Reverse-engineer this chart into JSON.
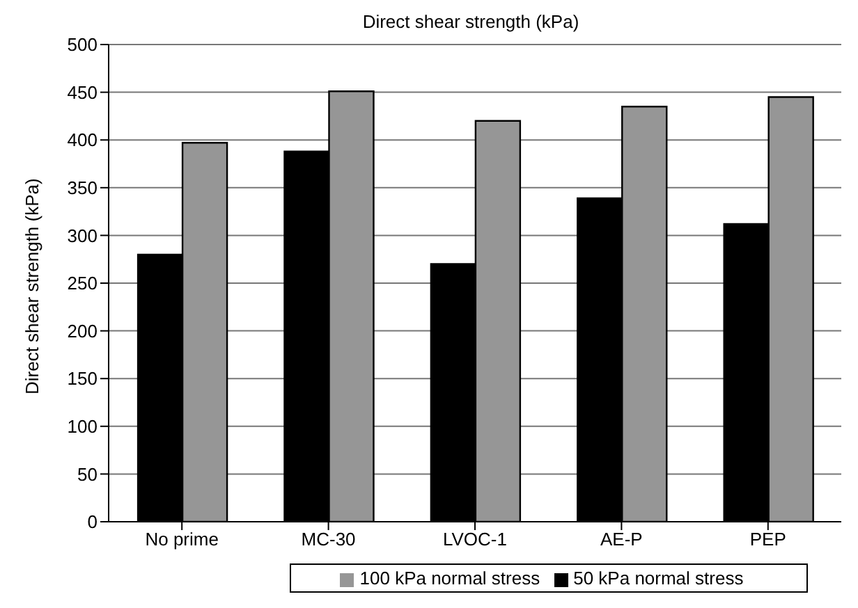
{
  "chart_data": {
    "type": "bar",
    "title": "Direct shear strength  (kPa)",
    "ylabel": "Direct shear strength (kPa)",
    "categories": [
      "No prime",
      "MC-30",
      "LVOC-1",
      "AE-P",
      "PEP"
    ],
    "series": [
      {
        "name": "50 kPa normal stress",
        "color": "#000000",
        "values": [
          280,
          388,
          270,
          339,
          312
        ]
      },
      {
        "name": "100 kPa normal stress",
        "color": "#969696",
        "values": [
          397,
          451,
          420,
          435,
          445
        ]
      }
    ],
    "ylim": [
      0,
      500
    ],
    "yticks": [
      0,
      50,
      100,
      150,
      200,
      250,
      300,
      350,
      400,
      450,
      500
    ],
    "grid": "y",
    "legend": "bottom"
  }
}
